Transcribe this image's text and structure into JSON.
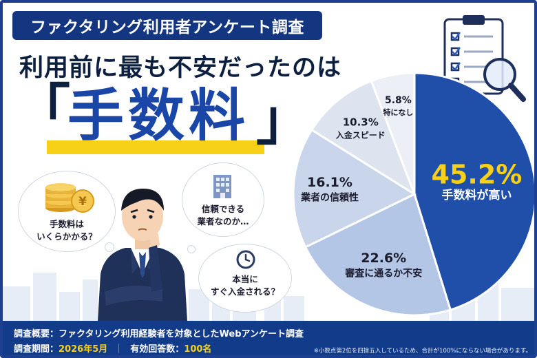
{
  "header": {
    "survey_tag": "ファクタリング利用者アンケート調査",
    "headline": "利用前に最も不安だったのは",
    "keyword": "手数料",
    "bracket_open": "「",
    "bracket_close": "」"
  },
  "thoughts": {
    "fee": "手数料は\nいくらかかる？",
    "trust": "信頼できる\n業者なのか…",
    "deposit": "本当に\nすぐ入金される？",
    "yen_symbol": "¥"
  },
  "footer": {
    "overview_label": "調査概要：",
    "overview": "ファクタリング利用経験者を対象としたWebアンケート調査",
    "period_label": "調査期間：",
    "period": "2026年5月",
    "divider": "｜",
    "responses_label": "有効回答数：",
    "responses": "100名",
    "footnote": "※小数点第2位を四捨五入しているため、合計が100%にならない場合があります。"
  },
  "chart_data": {
    "type": "pie",
    "unit": "%",
    "slices": [
      {
        "label": "手数料が高い",
        "value": 45.2,
        "color": "#1f4fa8",
        "text_color": "#ffffff",
        "value_color": "#f7d117"
      },
      {
        "label": "審査に通るか不安",
        "value": 22.6,
        "color": "#b4c6e6",
        "text_color": "#1b1b2e",
        "value_color": "#1b1b2e"
      },
      {
        "label": "業者の信頼性",
        "value": 16.1,
        "color": "#c9d5ea",
        "text_color": "#1b1b2e",
        "value_color": "#1b1b2e"
      },
      {
        "label": "入金スピード",
        "value": 10.3,
        "color": "#dde4f0",
        "text_color": "#1b1b2e",
        "value_color": "#1b1b2e"
      },
      {
        "label": "特になし",
        "value": 5.8,
        "color": "#eceff5",
        "text_color": "#1b1b2e",
        "value_color": "#1b1b2e"
      }
    ]
  },
  "colors": {
    "navy": "#14357f",
    "accent_blue": "#1a47a7",
    "highlight_yellow": "#f7d117"
  }
}
